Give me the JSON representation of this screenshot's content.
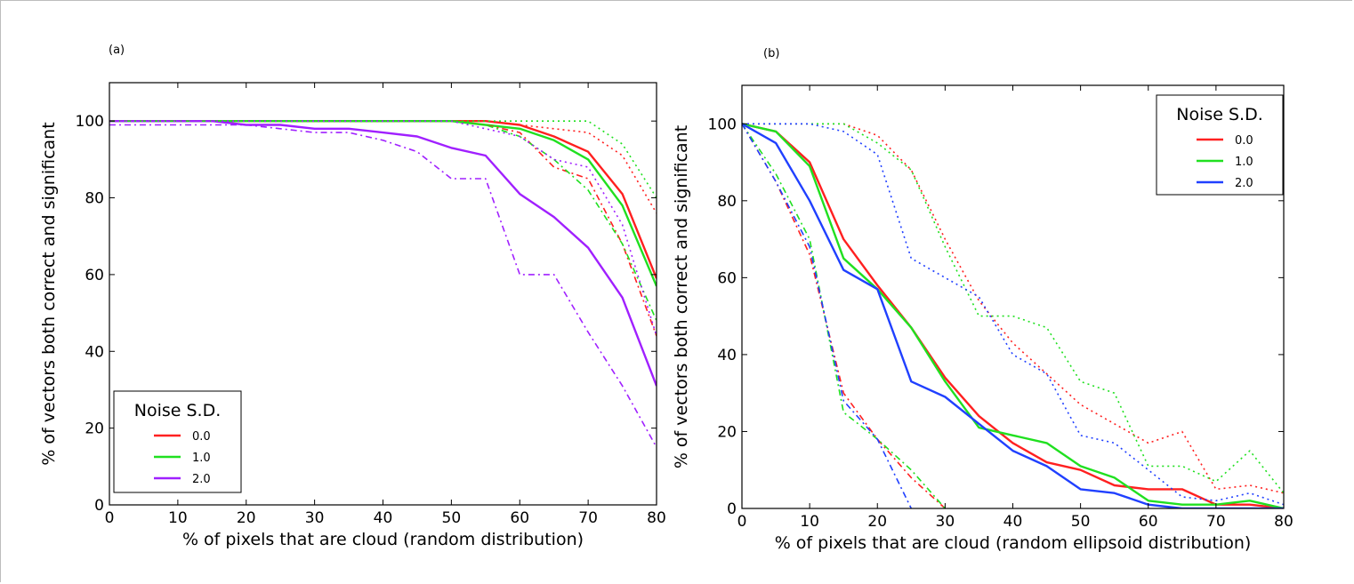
{
  "chart_data": [
    {
      "panel_label": "(a)",
      "type": "line",
      "xlabel": "% of pixels that are cloud (random distribution)",
      "ylabel": "% of vectors both correct and significant",
      "xlim": [
        0,
        80
      ],
      "ylim": [
        0,
        110
      ],
      "xticks": [
        0,
        10,
        20,
        30,
        40,
        50,
        60,
        70,
        80
      ],
      "yticks": [
        0,
        20,
        40,
        60,
        80,
        100
      ],
      "legend": {
        "title": "Noise S.D.",
        "placement": "lower-left",
        "entries": [
          "0.0",
          "1.0",
          "2.0"
        ]
      },
      "series": [
        {
          "name": "0.0",
          "color": "#ff2020",
          "style": "solid",
          "x": [
            0,
            5,
            10,
            15,
            20,
            25,
            30,
            35,
            40,
            45,
            50,
            55,
            60,
            65,
            70,
            75,
            80
          ],
          "y": [
            100,
            100,
            100,
            100,
            100,
            100,
            100,
            100,
            100,
            100,
            100,
            100,
            99,
            96,
            92,
            81,
            59
          ]
        },
        {
          "name": "1.0",
          "color": "#20e020",
          "style": "solid",
          "x": [
            0,
            5,
            10,
            15,
            20,
            25,
            30,
            35,
            40,
            45,
            50,
            55,
            60,
            65,
            70,
            75,
            80
          ],
          "y": [
            100,
            100,
            100,
            100,
            100,
            100,
            100,
            100,
            100,
            100,
            100,
            99,
            98,
            95,
            90,
            78,
            57
          ]
        },
        {
          "name": "2.0",
          "color": "#a020ff",
          "style": "solid",
          "x": [
            0,
            5,
            10,
            15,
            20,
            25,
            30,
            35,
            40,
            45,
            50,
            55,
            60,
            65,
            70,
            75,
            80
          ],
          "y": [
            100,
            100,
            100,
            100,
            99,
            99,
            98,
            98,
            97,
            96,
            93,
            91,
            81,
            75,
            67,
            54,
            31
          ]
        },
        {
          "name": "",
          "color": "#ff2020",
          "style": "dotted",
          "x": [
            0,
            10,
            20,
            30,
            40,
            50,
            55,
            60,
            65,
            70,
            75,
            80
          ],
          "y": [
            100,
            100,
            100,
            100,
            100,
            100,
            100,
            99,
            98,
            97,
            91,
            76
          ]
        },
        {
          "name": "",
          "color": "#ff2020",
          "style": "dashdot",
          "x": [
            0,
            10,
            20,
            30,
            40,
            50,
            55,
            60,
            65,
            70,
            75,
            80
          ],
          "y": [
            100,
            100,
            100,
            100,
            100,
            100,
            99,
            97,
            88,
            85,
            68,
            44
          ]
        },
        {
          "name": "",
          "color": "#20e020",
          "style": "dotted",
          "x": [
            0,
            10,
            20,
            30,
            40,
            50,
            55,
            60,
            65,
            70,
            75,
            80
          ],
          "y": [
            100,
            100,
            100,
            100,
            100,
            100,
            100,
            100,
            100,
            100,
            94,
            80
          ]
        },
        {
          "name": "",
          "color": "#20e020",
          "style": "dashdot",
          "x": [
            0,
            10,
            20,
            30,
            40,
            50,
            55,
            60,
            65,
            70,
            75,
            80
          ],
          "y": [
            100,
            100,
            100,
            100,
            100,
            100,
            99,
            96,
            90,
            82,
            68,
            48
          ]
        },
        {
          "name": "",
          "color": "#a020ff",
          "style": "dotted",
          "x": [
            0,
            10,
            20,
            30,
            40,
            50,
            55,
            60,
            65,
            70,
            75,
            80
          ],
          "y": [
            100,
            100,
            100,
            100,
            100,
            100,
            98,
            96,
            90,
            88,
            73,
            44
          ]
        },
        {
          "name": "",
          "color": "#a020ff",
          "style": "dashdot",
          "x": [
            0,
            10,
            20,
            25,
            30,
            35,
            40,
            45,
            50,
            55,
            60,
            65,
            70,
            75,
            80
          ],
          "y": [
            99,
            99,
            99,
            98,
            97,
            97,
            95,
            92,
            85,
            85,
            60,
            60,
            45,
            31,
            15
          ]
        }
      ]
    },
    {
      "panel_label": "(b)",
      "type": "line",
      "xlabel": "% of pixels that are cloud (random ellipsoid distribution)",
      "ylabel": "% of vectors both correct and significant",
      "xlim": [
        0,
        80
      ],
      "ylim": [
        0,
        110
      ],
      "xticks": [
        0,
        10,
        20,
        30,
        40,
        50,
        60,
        70,
        80
      ],
      "yticks": [
        0,
        20,
        40,
        60,
        80,
        100
      ],
      "legend": {
        "title": "Noise S.D.",
        "placement": "upper-right",
        "entries": [
          "0.0",
          "1.0",
          "2.0"
        ]
      },
      "series": [
        {
          "name": "0.0",
          "color": "#ff2020",
          "style": "solid",
          "x": [
            0,
            5,
            10,
            15,
            20,
            25,
            30,
            35,
            40,
            45,
            50,
            55,
            60,
            65,
            70,
            75,
            80
          ],
          "y": [
            100,
            98,
            90,
            70,
            58,
            47,
            34,
            24,
            17,
            12,
            10,
            6,
            5,
            5,
            1,
            1,
            0
          ]
        },
        {
          "name": "1.0",
          "color": "#20e020",
          "style": "solid",
          "x": [
            0,
            5,
            10,
            15,
            20,
            25,
            30,
            35,
            40,
            45,
            50,
            55,
            60,
            65,
            70,
            75,
            80
          ],
          "y": [
            100,
            98,
            89,
            65,
            57,
            47,
            33,
            21,
            19,
            17,
            11,
            8,
            2,
            1,
            1,
            2,
            0
          ]
        },
        {
          "name": "2.0",
          "color": "#2040ff",
          "style": "solid",
          "x": [
            0,
            5,
            10,
            15,
            20,
            25,
            30,
            35,
            40,
            45,
            50,
            55,
            60,
            65,
            70,
            75,
            80
          ],
          "y": [
            100,
            95,
            80,
            62,
            57,
            33,
            29,
            22,
            15,
            11,
            5,
            4,
            1,
            0,
            0,
            0,
            0
          ]
        },
        {
          "name": "",
          "color": "#ff2020",
          "style": "dotted",
          "x": [
            0,
            5,
            10,
            15,
            20,
            25,
            30,
            35,
            40,
            45,
            50,
            55,
            60,
            65,
            70,
            75,
            80
          ],
          "y": [
            100,
            100,
            100,
            100,
            97,
            88,
            70,
            54,
            43,
            35,
            27,
            22,
            17,
            20,
            5,
            6,
            4
          ]
        },
        {
          "name": "",
          "color": "#ff2020",
          "style": "dashdot",
          "x": [
            0,
            5,
            10,
            15,
            20,
            25,
            30
          ],
          "y": [
            100,
            85,
            66,
            30,
            18,
            8,
            0
          ]
        },
        {
          "name": "",
          "color": "#20e020",
          "style": "dotted",
          "x": [
            0,
            5,
            10,
            15,
            20,
            25,
            30,
            35,
            40,
            45,
            50,
            55,
            60,
            65,
            70,
            75,
            80
          ],
          "y": [
            100,
            100,
            100,
            100,
            95,
            88,
            68,
            50,
            50,
            47,
            33,
            30,
            11,
            11,
            7,
            15,
            4
          ]
        },
        {
          "name": "",
          "color": "#20e020",
          "style": "dashdot",
          "x": [
            0,
            5,
            10,
            15,
            20,
            25,
            30
          ],
          "y": [
            100,
            87,
            70,
            25,
            18,
            10,
            0
          ]
        },
        {
          "name": "",
          "color": "#2040ff",
          "style": "dotted",
          "x": [
            0,
            5,
            10,
            15,
            20,
            25,
            30,
            35,
            40,
            45,
            50,
            55,
            60,
            65,
            70,
            75,
            80
          ],
          "y": [
            100,
            100,
            100,
            98,
            92,
            65,
            60,
            55,
            40,
            35,
            19,
            17,
            10,
            3,
            2,
            4,
            1
          ]
        },
        {
          "name": "",
          "color": "#2040ff",
          "style": "dashdot",
          "x": [
            0,
            5,
            10,
            15,
            20,
            25
          ],
          "y": [
            100,
            85,
            68,
            28,
            18,
            0
          ]
        }
      ]
    }
  ]
}
